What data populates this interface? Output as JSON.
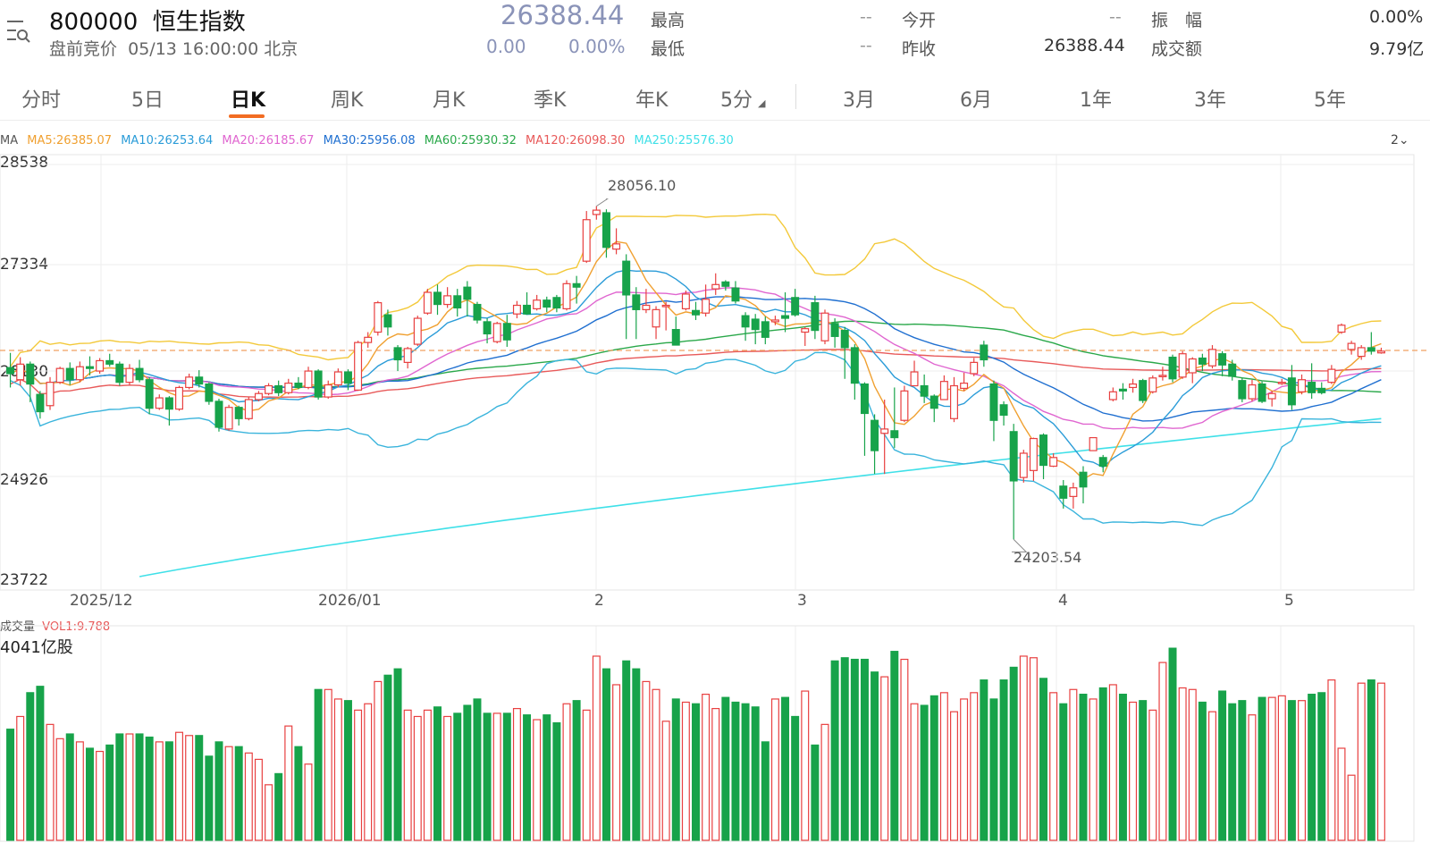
{
  "header": {
    "code": "800000",
    "name": "恒生指数",
    "session": "盘前竞价",
    "datetime": "05/13 16:00:00 北京",
    "price": "26388.44",
    "change": "0.00",
    "change_pct": "0.00%",
    "stats": [
      {
        "label": "最高",
        "value": "--"
      },
      {
        "label": "最低",
        "value": "--"
      },
      {
        "label": "今开",
        "value": "--"
      },
      {
        "label": "昨收",
        "value": "26388.44"
      },
      {
        "label": "振　幅",
        "value": "0.00%"
      },
      {
        "label": "成交额",
        "value": "9.79亿"
      }
    ]
  },
  "tabs": [
    {
      "label": "分时",
      "active": false
    },
    {
      "label": "5日",
      "active": false
    },
    {
      "label": "日K",
      "active": true
    },
    {
      "label": "周K",
      "active": false
    },
    {
      "label": "月K",
      "active": false
    },
    {
      "label": "季K",
      "active": false
    },
    {
      "label": "年K",
      "active": false
    },
    {
      "label": "5分",
      "active": false
    },
    {
      "label": "3月",
      "active": false
    },
    {
      "label": "6月",
      "active": false
    },
    {
      "label": "1年",
      "active": false
    },
    {
      "label": "3年",
      "active": false
    },
    {
      "label": "5年",
      "active": false
    }
  ],
  "ma_legend": {
    "prefix": "MA",
    "items": [
      {
        "text": "MA5:26385.07",
        "color": "#f0a030"
      },
      {
        "text": "MA10:26253.64",
        "color": "#2b9cd8"
      },
      {
        "text": "MA20:26185.67",
        "color": "#e066d0"
      },
      {
        "text": "MA30:25956.08",
        "color": "#1f6fd0"
      },
      {
        "text": "MA60:25930.32",
        "color": "#2aa84a"
      },
      {
        "text": "MA120:26098.30",
        "color": "#e85a5a"
      },
      {
        "text": "MA250:25576.30",
        "color": "#3fe0e8"
      }
    ],
    "toggle": "2"
  },
  "volume_legend": {
    "label": "成交量",
    "vol_text": "VOL1:9.788",
    "max_label": "4041亿股"
  },
  "chart_data": {
    "type": "candlestick",
    "price_axis": {
      "ticks": [
        "28538",
        "27334",
        "26130",
        "24926",
        "23722"
      ],
      "ylim": [
        23722,
        28538
      ]
    },
    "x_tick_labels": [
      "2025/12",
      "2026/01",
      "2",
      "3",
      "4",
      "5"
    ],
    "annotations": [
      {
        "text": "28056.10",
        "value": 28056.1
      },
      {
        "text": "24203.54",
        "value": 24203.54
      }
    ],
    "reference_line": {
      "value": 26388.44,
      "color": "#f0a060"
    },
    "up_color": "#e84040",
    "down_color": "#17a34a",
    "candles": [
      [
        26190,
        26120,
        26360,
        25960
      ],
      [
        26050,
        26230,
        26310,
        25980
      ],
      [
        26230,
        26000,
        26260,
        25790
      ],
      [
        25880,
        25680,
        25920,
        25600
      ],
      [
        25750,
        26020,
        26080,
        25700
      ],
      [
        26020,
        26180,
        26200,
        26000
      ],
      [
        26180,
        26050,
        26250,
        25990
      ],
      [
        26050,
        26200,
        26260,
        26020
      ],
      [
        26200,
        26180,
        26320,
        26100
      ],
      [
        26150,
        26270,
        26300,
        26120
      ],
      [
        26270,
        26230,
        26350,
        26200
      ],
      [
        26230,
        26020,
        26260,
        25980
      ],
      [
        26020,
        26180,
        26230,
        25990
      ],
      [
        26180,
        26050,
        26280,
        26020
      ],
      [
        26050,
        25720,
        26080,
        25650
      ],
      [
        25720,
        25840,
        25880,
        25700
      ],
      [
        25840,
        25710,
        25860,
        25520
      ],
      [
        25710,
        25960,
        25980,
        25690
      ],
      [
        25960,
        26080,
        26120,
        25940
      ],
      [
        26080,
        26000,
        26160,
        25960
      ],
      [
        26000,
        25800,
        26020,
        25760
      ],
      [
        25800,
        25500,
        25830,
        25450
      ],
      [
        25480,
        25730,
        25760,
        25460
      ],
      [
        25730,
        25600,
        25750,
        25520
      ],
      [
        25600,
        25820,
        25850,
        25580
      ],
      [
        25820,
        25890,
        25920,
        25800
      ],
      [
        25890,
        25980,
        26010,
        25870
      ],
      [
        25980,
        25900,
        26040,
        25860
      ],
      [
        25900,
        26010,
        26060,
        25880
      ],
      [
        26010,
        25960,
        26080,
        25940
      ],
      [
        25960,
        26150,
        26200,
        25940
      ],
      [
        26150,
        25850,
        26170,
        25820
      ],
      [
        25850,
        25990,
        26040,
        25830
      ],
      [
        25990,
        26140,
        26180,
        25960
      ],
      [
        26140,
        26010,
        26170,
        25930
      ],
      [
        25930,
        26480,
        26500,
        25920
      ],
      [
        26480,
        26540,
        26600,
        26420
      ],
      [
        26600,
        26940,
        26960,
        26560
      ],
      [
        26800,
        26660,
        26860,
        26560
      ],
      [
        26420,
        26280,
        26450,
        26150
      ],
      [
        26250,
        26410,
        26430,
        26180
      ],
      [
        26460,
        26760,
        26790,
        26440
      ],
      [
        26820,
        27060,
        27100,
        26800
      ],
      [
        27060,
        26920,
        27150,
        26800
      ],
      [
        26920,
        27020,
        27120,
        26880
      ],
      [
        27020,
        26880,
        27100,
        26780
      ],
      [
        27120,
        26980,
        27190,
        26780
      ],
      [
        26920,
        26740,
        26950,
        26700
      ],
      [
        26720,
        26580,
        26760,
        26470
      ],
      [
        26490,
        26700,
        26720,
        26470
      ],
      [
        26700,
        26510,
        26800,
        26430
      ],
      [
        26810,
        26910,
        26960,
        26760
      ],
      [
        26910,
        26810,
        27060,
        26800
      ],
      [
        26870,
        26970,
        27030,
        26850
      ],
      [
        26970,
        26890,
        27010,
        26830
      ],
      [
        27000,
        26880,
        27030,
        26830
      ],
      [
        26870,
        27160,
        27200,
        26850
      ],
      [
        27160,
        27120,
        27250,
        26930
      ],
      [
        27420,
        27900,
        28000,
        27400
      ],
      [
        27960,
        28010,
        28056,
        27900
      ],
      [
        27980,
        27580,
        28020,
        27460
      ],
      [
        27560,
        27620,
        27800,
        27500
      ],
      [
        27420,
        27030,
        27500,
        26520
      ],
      [
        27030,
        26860,
        27120,
        26520
      ],
      [
        26860,
        26910,
        27100,
        26820
      ],
      [
        26660,
        26860,
        26900,
        26520
      ],
      [
        26900,
        26910,
        26950,
        26620
      ],
      [
        26630,
        26450,
        26780,
        26450
      ],
      [
        26870,
        27040,
        27080,
        26850
      ],
      [
        26850,
        26800,
        26950,
        26740
      ],
      [
        26820,
        26980,
        27150,
        26780
      ],
      [
        27100,
        27150,
        27280,
        27030
      ],
      [
        27180,
        27130,
        27200,
        27080
      ],
      [
        27110,
        26960,
        27190,
        26930
      ],
      [
        26790,
        26660,
        26830,
        26500
      ],
      [
        26750,
        26630,
        26810,
        26460
      ],
      [
        26720,
        26540,
        26780,
        26460
      ],
      [
        26720,
        26740,
        26790,
        26680
      ],
      [
        26790,
        26760,
        27060,
        26600
      ],
      [
        27000,
        26800,
        27100,
        26780
      ],
      [
        26600,
        26640,
        26660,
        26440
      ],
      [
        26940,
        26620,
        27020,
        26520
      ],
      [
        26500,
        26820,
        26860,
        26460
      ],
      [
        26700,
        26550,
        26760,
        26420
      ],
      [
        26620,
        26420,
        26660,
        26060
      ],
      [
        26420,
        26010,
        26460,
        25820
      ],
      [
        26000,
        25660,
        26020,
        25170
      ],
      [
        25580,
        25230,
        25650,
        24960
      ],
      [
        25430,
        25480,
        25820,
        24960
      ],
      [
        25460,
        25380,
        25960,
        25260
      ],
      [
        25580,
        25920,
        25980,
        25560
      ],
      [
        25980,
        26140,
        26270,
        26050
      ],
      [
        25980,
        25860,
        26110,
        25780
      ],
      [
        25860,
        25720,
        25880,
        25560
      ],
      [
        25820,
        26030,
        26100,
        25820
      ],
      [
        25600,
        25980,
        26080,
        25560
      ],
      [
        25950,
        26010,
        26130,
        25920
      ],
      [
        26120,
        26250,
        26300,
        26090
      ],
      [
        26450,
        26280,
        26500,
        26200
      ],
      [
        26000,
        25580,
        26040,
        25340
      ],
      [
        25760,
        25640,
        25800,
        25520
      ],
      [
        25450,
        24880,
        25540,
        24204
      ],
      [
        24920,
        25200,
        25240,
        24860
      ],
      [
        25000,
        25370,
        25380,
        24880
      ],
      [
        25410,
        25060,
        25430,
        24900
      ],
      [
        25050,
        25150,
        25200,
        25040
      ],
      [
        24820,
        24680,
        24890,
        24560
      ],
      [
        24700,
        24800,
        24860,
        24560
      ],
      [
        24980,
        24810,
        25050,
        24620
      ],
      [
        25230,
        25380,
        25360,
        25260
      ],
      [
        25150,
        25050,
        25180,
        24980
      ],
      [
        25820,
        25910,
        25960,
        25800
      ],
      [
        25940,
        25920,
        26010,
        25820
      ],
      [
        25960,
        26000,
        26060,
        25900
      ],
      [
        26040,
        25810,
        26060,
        25780
      ],
      [
        25910,
        26070,
        26100,
        25890
      ],
      [
        26090,
        26100,
        26200,
        26040
      ],
      [
        26310,
        26060,
        26340,
        26020
      ],
      [
        26080,
        26350,
        26380,
        26060
      ],
      [
        26130,
        26290,
        26310,
        26010
      ],
      [
        26300,
        26230,
        26350,
        26150
      ],
      [
        26210,
        26400,
        26450,
        26180
      ],
      [
        26350,
        26220,
        26380,
        26090
      ],
      [
        26230,
        26090,
        26280,
        26040
      ],
      [
        26040,
        25830,
        26070,
        25790
      ],
      [
        25830,
        25990,
        26050,
        25800
      ],
      [
        26000,
        25800,
        26030,
        25780
      ],
      [
        25830,
        25890,
        25920,
        25740
      ],
      [
        26010,
        26020,
        26060,
        25990
      ],
      [
        26070,
        25760,
        26220,
        25700
      ],
      [
        25910,
        26050,
        26110,
        25880
      ],
      [
        26020,
        25900,
        26240,
        25830
      ],
      [
        25950,
        25900,
        26020,
        25880
      ],
      [
        26020,
        26170,
        26220,
        26000
      ],
      [
        26600,
        26680,
        26700,
        26580
      ],
      [
        26400,
        26470,
        26500,
        26340
      ],
      [
        26320,
        26420,
        26450,
        26280
      ],
      [
        26420,
        26380,
        26600,
        26340
      ],
      [
        26360,
        26380,
        26420,
        26350
      ]
    ],
    "volume": [
      70,
      78,
      93,
      97,
      73,
      64,
      67,
      62,
      58,
      56,
      60,
      67,
      67,
      67,
      65,
      62,
      62,
      68,
      66,
      66,
      53,
      62,
      59,
      59,
      55,
      51,
      35,
      42,
      72,
      59,
      48,
      95,
      95,
      89,
      88,
      82,
      86,
      100,
      104,
      108,
      82,
      78,
      82,
      84,
      78,
      80,
      85,
      89,
      80,
      80,
      80,
      83,
      79,
      76,
      79,
      74,
      86,
      88,
      82,
      116,
      108,
      98,
      113,
      108,
      100,
      95,
      75,
      89,
      87,
      86,
      92,
      83,
      90,
      87,
      86,
      84,
      62,
      89,
      90,
      78,
      94,
      60,
      73,
      113,
      115,
      114,
      114,
      106,
      103,
      119,
      114,
      86,
      85,
      91,
      93,
      81,
      89,
      93,
      101,
      89,
      101,
      109,
      116,
      115,
      102,
      93,
      86,
      95,
      92,
      89,
      96,
      98,
      92,
      87,
      88,
      82,
      112,
      121,
      96,
      95,
      87,
      81,
      94,
      86,
      88,
      79,
      90,
      90,
      91,
      88,
      88,
      92,
      93,
      101,
      58,
      41,
      99,
      101,
      99,
      96,
      94,
      93,
      91,
      38
    ]
  }
}
